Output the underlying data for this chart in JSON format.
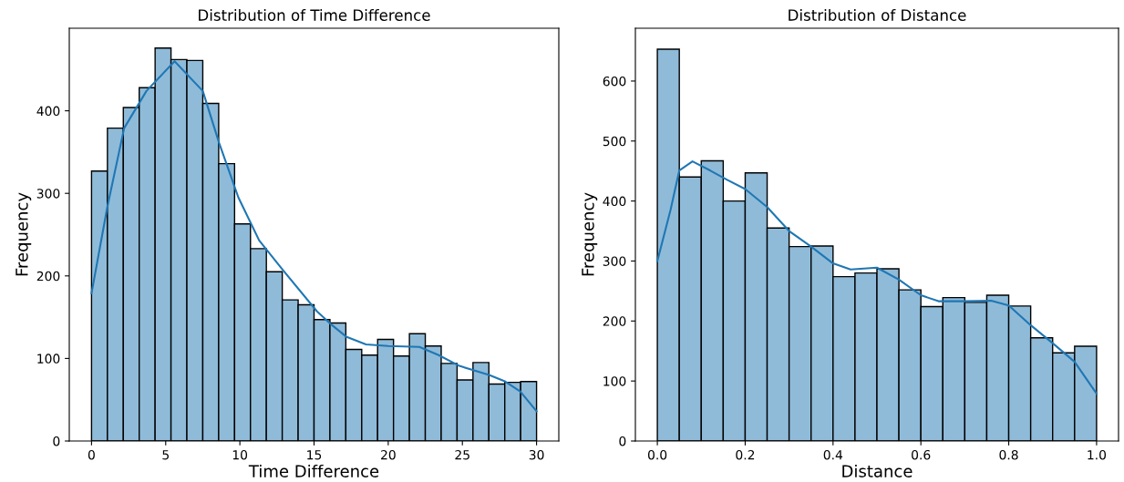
{
  "chart_data": [
    {
      "type": "histogram",
      "title": "Distribution of Time Difference",
      "xlabel": "Time Difference",
      "ylabel": "Frequency",
      "xlim": [
        -1.5,
        31.5
      ],
      "ylim": [
        0,
        500
      ],
      "xticks": [
        0,
        5,
        10,
        15,
        20,
        25,
        30
      ],
      "yticks": [
        0,
        100,
        200,
        300,
        400
      ],
      "grid": false,
      "legend": false,
      "series": [
        {
          "color": "#8fbbd9",
          "bins": [
            0,
            1.0714,
            2.1429,
            3.2143,
            4.2857,
            5.3571,
            6.4286,
            7.5,
            8.5714,
            9.6429,
            10.7143,
            11.7857,
            12.8571,
            13.9286,
            15,
            16.0714,
            17.1429,
            18.2143,
            19.2857,
            20.3571,
            21.4286,
            22.5,
            23.5714,
            24.6429,
            25.7143,
            26.7857,
            27.8571,
            28.9286,
            30
          ],
          "values": [
            327,
            379,
            404,
            428,
            476,
            462,
            461,
            409,
            336,
            263,
            233,
            205,
            171,
            165,
            147,
            143,
            111,
            104,
            123,
            103,
            130,
            115,
            94,
            74,
            95,
            69,
            71,
            72
          ]
        },
        {
          "type": "line",
          "color": "#1f77b4",
          "x": [
            0,
            1.07,
            2.2,
            3.7,
            5.6,
            7.5,
            8.6,
            9.9,
            11.3,
            12.9,
            15.2,
            16.1,
            17.2,
            18.5,
            20,
            22.1,
            23.4,
            24.8,
            26.8,
            27.9,
            28.9,
            30
          ],
          "values": [
            179,
            284,
            379,
            424,
            460,
            424,
            361,
            295,
            243,
            207,
            157,
            142,
            126,
            117,
            115,
            114,
            104,
            91,
            80,
            72,
            60,
            36
          ]
        }
      ]
    },
    {
      "type": "histogram",
      "title": "Distribution of Distance",
      "xlabel": "Distance",
      "ylabel": "Frequency",
      "xlim": [
        -0.05,
        1.05
      ],
      "ylim": [
        0,
        688
      ],
      "xticks": [
        {
          "value": 0,
          "label": "0.0"
        },
        0.2,
        0.4,
        0.6,
        0.8,
        {
          "value": 1,
          "label": "1.0"
        }
      ],
      "yticks": [
        0,
        100,
        200,
        300,
        400,
        500,
        600
      ],
      "grid": false,
      "legend": false,
      "series": [
        {
          "color": "#8fbbd9",
          "bins": [
            0,
            0.05,
            0.1,
            0.15,
            0.2,
            0.25,
            0.3,
            0.35,
            0.4,
            0.45,
            0.5,
            0.55,
            0.6,
            0.65,
            0.7,
            0.75,
            0.8,
            0.85,
            0.9,
            0.95,
            1
          ],
          "values": [
            653,
            440,
            467,
            400,
            447,
            355,
            324,
            325,
            274,
            280,
            287,
            252,
            224,
            239,
            231,
            243,
            225,
            172,
            147,
            158
          ]
        },
        {
          "type": "line",
          "color": "#1f77b4",
          "x": [
            0,
            0.03,
            0.05,
            0.08,
            0.12,
            0.16,
            0.2,
            0.25,
            0.3,
            0.35,
            0.4,
            0.44,
            0.5,
            0.55,
            0.6,
            0.64,
            0.7,
            0.76,
            0.8,
            0.85,
            0.9,
            0.95,
            1
          ],
          "values": [
            300,
            385,
            451,
            466,
            451,
            435,
            420,
            390,
            350,
            324,
            296,
            286,
            289,
            269,
            243,
            233,
            233,
            234,
            226,
            193,
            163,
            132,
            79
          ]
        }
      ]
    }
  ]
}
